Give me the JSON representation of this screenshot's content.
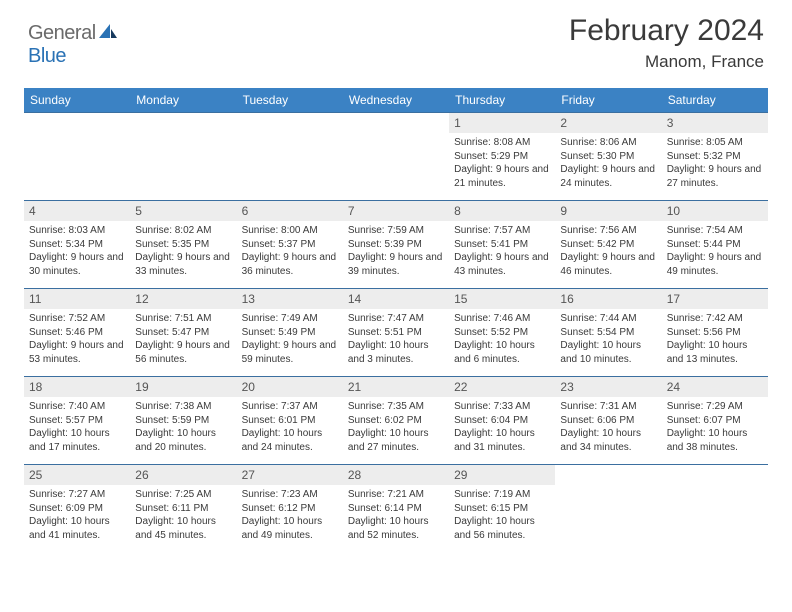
{
  "brand": {
    "general": "General",
    "blue": "Blue"
  },
  "title": "February 2024",
  "location": "Manom, France",
  "colors": {
    "header_bg": "#3b82c4",
    "header_text": "#ffffff",
    "rule": "#3b6fa0",
    "daynum_bg": "#ededed",
    "body_text": "#3a3a3a",
    "logo_gray": "#6a6a6a",
    "logo_blue": "#2a72b5"
  },
  "daysOfWeek": [
    "Sunday",
    "Monday",
    "Tuesday",
    "Wednesday",
    "Thursday",
    "Friday",
    "Saturday"
  ],
  "startOffset": 4,
  "days": [
    {
      "n": 1,
      "sr": "8:08 AM",
      "ss": "5:29 PM",
      "dl": "9 hours and 21 minutes."
    },
    {
      "n": 2,
      "sr": "8:06 AM",
      "ss": "5:30 PM",
      "dl": "9 hours and 24 minutes."
    },
    {
      "n": 3,
      "sr": "8:05 AM",
      "ss": "5:32 PM",
      "dl": "9 hours and 27 minutes."
    },
    {
      "n": 4,
      "sr": "8:03 AM",
      "ss": "5:34 PM",
      "dl": "9 hours and 30 minutes."
    },
    {
      "n": 5,
      "sr": "8:02 AM",
      "ss": "5:35 PM",
      "dl": "9 hours and 33 minutes."
    },
    {
      "n": 6,
      "sr": "8:00 AM",
      "ss": "5:37 PM",
      "dl": "9 hours and 36 minutes."
    },
    {
      "n": 7,
      "sr": "7:59 AM",
      "ss": "5:39 PM",
      "dl": "9 hours and 39 minutes."
    },
    {
      "n": 8,
      "sr": "7:57 AM",
      "ss": "5:41 PM",
      "dl": "9 hours and 43 minutes."
    },
    {
      "n": 9,
      "sr": "7:56 AM",
      "ss": "5:42 PM",
      "dl": "9 hours and 46 minutes."
    },
    {
      "n": 10,
      "sr": "7:54 AM",
      "ss": "5:44 PM",
      "dl": "9 hours and 49 minutes."
    },
    {
      "n": 11,
      "sr": "7:52 AM",
      "ss": "5:46 PM",
      "dl": "9 hours and 53 minutes."
    },
    {
      "n": 12,
      "sr": "7:51 AM",
      "ss": "5:47 PM",
      "dl": "9 hours and 56 minutes."
    },
    {
      "n": 13,
      "sr": "7:49 AM",
      "ss": "5:49 PM",
      "dl": "9 hours and 59 minutes."
    },
    {
      "n": 14,
      "sr": "7:47 AM",
      "ss": "5:51 PM",
      "dl": "10 hours and 3 minutes."
    },
    {
      "n": 15,
      "sr": "7:46 AM",
      "ss": "5:52 PM",
      "dl": "10 hours and 6 minutes."
    },
    {
      "n": 16,
      "sr": "7:44 AM",
      "ss": "5:54 PM",
      "dl": "10 hours and 10 minutes."
    },
    {
      "n": 17,
      "sr": "7:42 AM",
      "ss": "5:56 PM",
      "dl": "10 hours and 13 minutes."
    },
    {
      "n": 18,
      "sr": "7:40 AM",
      "ss": "5:57 PM",
      "dl": "10 hours and 17 minutes."
    },
    {
      "n": 19,
      "sr": "7:38 AM",
      "ss": "5:59 PM",
      "dl": "10 hours and 20 minutes."
    },
    {
      "n": 20,
      "sr": "7:37 AM",
      "ss": "6:01 PM",
      "dl": "10 hours and 24 minutes."
    },
    {
      "n": 21,
      "sr": "7:35 AM",
      "ss": "6:02 PM",
      "dl": "10 hours and 27 minutes."
    },
    {
      "n": 22,
      "sr": "7:33 AM",
      "ss": "6:04 PM",
      "dl": "10 hours and 31 minutes."
    },
    {
      "n": 23,
      "sr": "7:31 AM",
      "ss": "6:06 PM",
      "dl": "10 hours and 34 minutes."
    },
    {
      "n": 24,
      "sr": "7:29 AM",
      "ss": "6:07 PM",
      "dl": "10 hours and 38 minutes."
    },
    {
      "n": 25,
      "sr": "7:27 AM",
      "ss": "6:09 PM",
      "dl": "10 hours and 41 minutes."
    },
    {
      "n": 26,
      "sr": "7:25 AM",
      "ss": "6:11 PM",
      "dl": "10 hours and 45 minutes."
    },
    {
      "n": 27,
      "sr": "7:23 AM",
      "ss": "6:12 PM",
      "dl": "10 hours and 49 minutes."
    },
    {
      "n": 28,
      "sr": "7:21 AM",
      "ss": "6:14 PM",
      "dl": "10 hours and 52 minutes."
    },
    {
      "n": 29,
      "sr": "7:19 AM",
      "ss": "6:15 PM",
      "dl": "10 hours and 56 minutes."
    }
  ],
  "labels": {
    "sunrise": "Sunrise:",
    "sunset": "Sunset:",
    "daylight": "Daylight:"
  }
}
